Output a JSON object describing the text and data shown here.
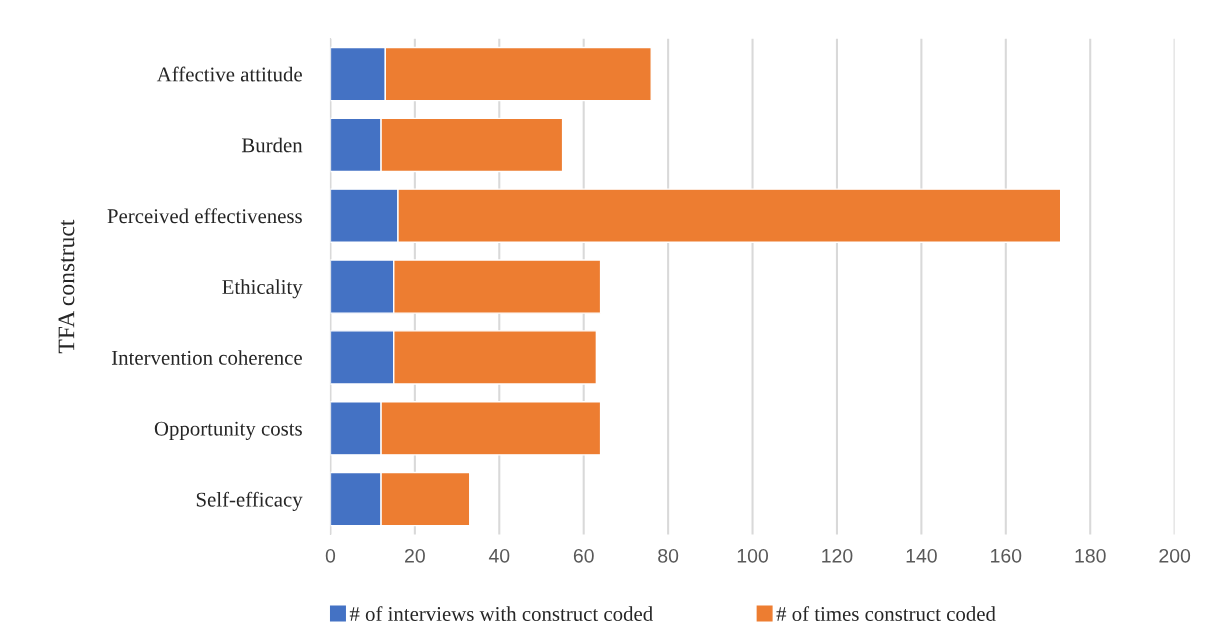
{
  "chart_data": {
    "type": "bar",
    "orientation": "horizontal",
    "stacked": true,
    "ylabel": "TFA construct",
    "categories": [
      "Affective attitude",
      "Burden",
      "Perceived effectiveness",
      "Ethicality",
      "Intervention coherence",
      "Opportunity costs",
      "Self-efficacy"
    ],
    "series": [
      {
        "name": "# of interviews with construct coded",
        "color": "#4472c4",
        "values": [
          13,
          12,
          16,
          15,
          15,
          12,
          12
        ]
      },
      {
        "name": "# of times construct coded",
        "color": "#ed7d31",
        "values": [
          63,
          43,
          157,
          49,
          48,
          52,
          21
        ]
      }
    ],
    "xlim": [
      0,
      200
    ],
    "xticks": [
      0,
      20,
      40,
      60,
      80,
      100,
      120,
      140,
      160,
      180,
      200
    ],
    "grid": "x",
    "legend": "bottom"
  }
}
